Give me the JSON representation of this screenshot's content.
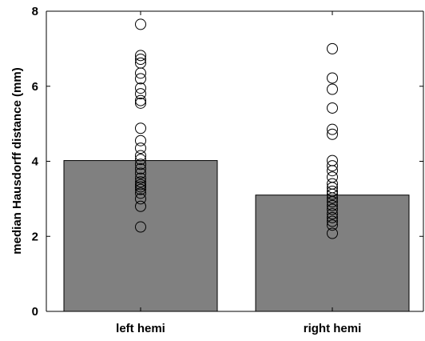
{
  "chart_data": {
    "type": "bar",
    "title": "",
    "xlabel": "",
    "ylabel": "median Hausdorff distance (mm)",
    "ylim": [
      0,
      8
    ],
    "yticks": [
      0,
      2,
      4,
      6,
      8
    ],
    "grid": false,
    "categories": [
      "left hemi",
      "right hemi"
    ],
    "values": [
      4.02,
      3.1
    ],
    "bar_color": "#808080",
    "points": [
      [
        7.65,
        6.82,
        6.72,
        6.62,
        6.35,
        6.2,
        5.95,
        5.8,
        5.62,
        5.55,
        4.88,
        4.55,
        4.35,
        4.15,
        4.05,
        3.92,
        3.8,
        3.68,
        3.55,
        3.45,
        3.38,
        3.32,
        3.25,
        3.15,
        3.0,
        2.8,
        2.25
      ],
      [
        7.0,
        6.22,
        5.92,
        5.42,
        4.85,
        4.72,
        4.02,
        3.88,
        3.75,
        3.58,
        3.4,
        3.3,
        3.2,
        3.12,
        3.02,
        2.92,
        2.82,
        2.72,
        2.6,
        2.5,
        2.4,
        2.3,
        2.08
      ]
    ]
  }
}
